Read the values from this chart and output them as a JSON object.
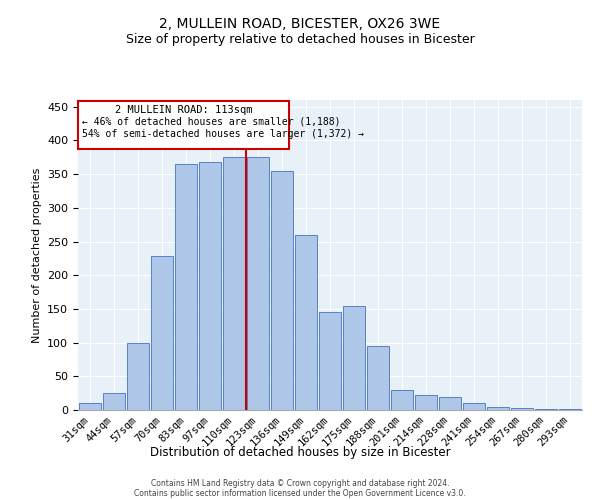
{
  "title1": "2, MULLEIN ROAD, BICESTER, OX26 3WE",
  "title2": "Size of property relative to detached houses in Bicester",
  "xlabel": "Distribution of detached houses by size in Bicester",
  "ylabel": "Number of detached properties",
  "bar_labels": [
    "31sqm",
    "44sqm",
    "57sqm",
    "70sqm",
    "83sqm",
    "97sqm",
    "110sqm",
    "123sqm",
    "136sqm",
    "149sqm",
    "162sqm",
    "175sqm",
    "188sqm",
    "201sqm",
    "214sqm",
    "228sqm",
    "241sqm",
    "254sqm",
    "267sqm",
    "280sqm",
    "293sqm"
  ],
  "bar_values": [
    10,
    25,
    100,
    228,
    365,
    368,
    375,
    375,
    355,
    260,
    145,
    155,
    95,
    30,
    22,
    20,
    10,
    5,
    3,
    2,
    1
  ],
  "bar_color": "#aec6e8",
  "bar_edge_color": "#4472c4",
  "property_line_label": "2 MULLEIN ROAD: 113sqm",
  "annotation_line1": "← 46% of detached houses are smaller (1,188)",
  "annotation_line2": "54% of semi-detached houses are larger (1,372) →",
  "annotation_box_color": "#ffffff",
  "annotation_box_edge_color": "#cc0000",
  "vline_color": "#cc0000",
  "bg_color": "#e8f0f8",
  "footer1": "Contains HM Land Registry data © Crown copyright and database right 2024.",
  "footer2": "Contains public sector information licensed under the Open Government Licence v3.0.",
  "ylim": [
    0,
    460
  ],
  "title1_fontsize": 10,
  "title2_fontsize": 9,
  "xlabel_fontsize": 8.5,
  "ylabel_fontsize": 8
}
